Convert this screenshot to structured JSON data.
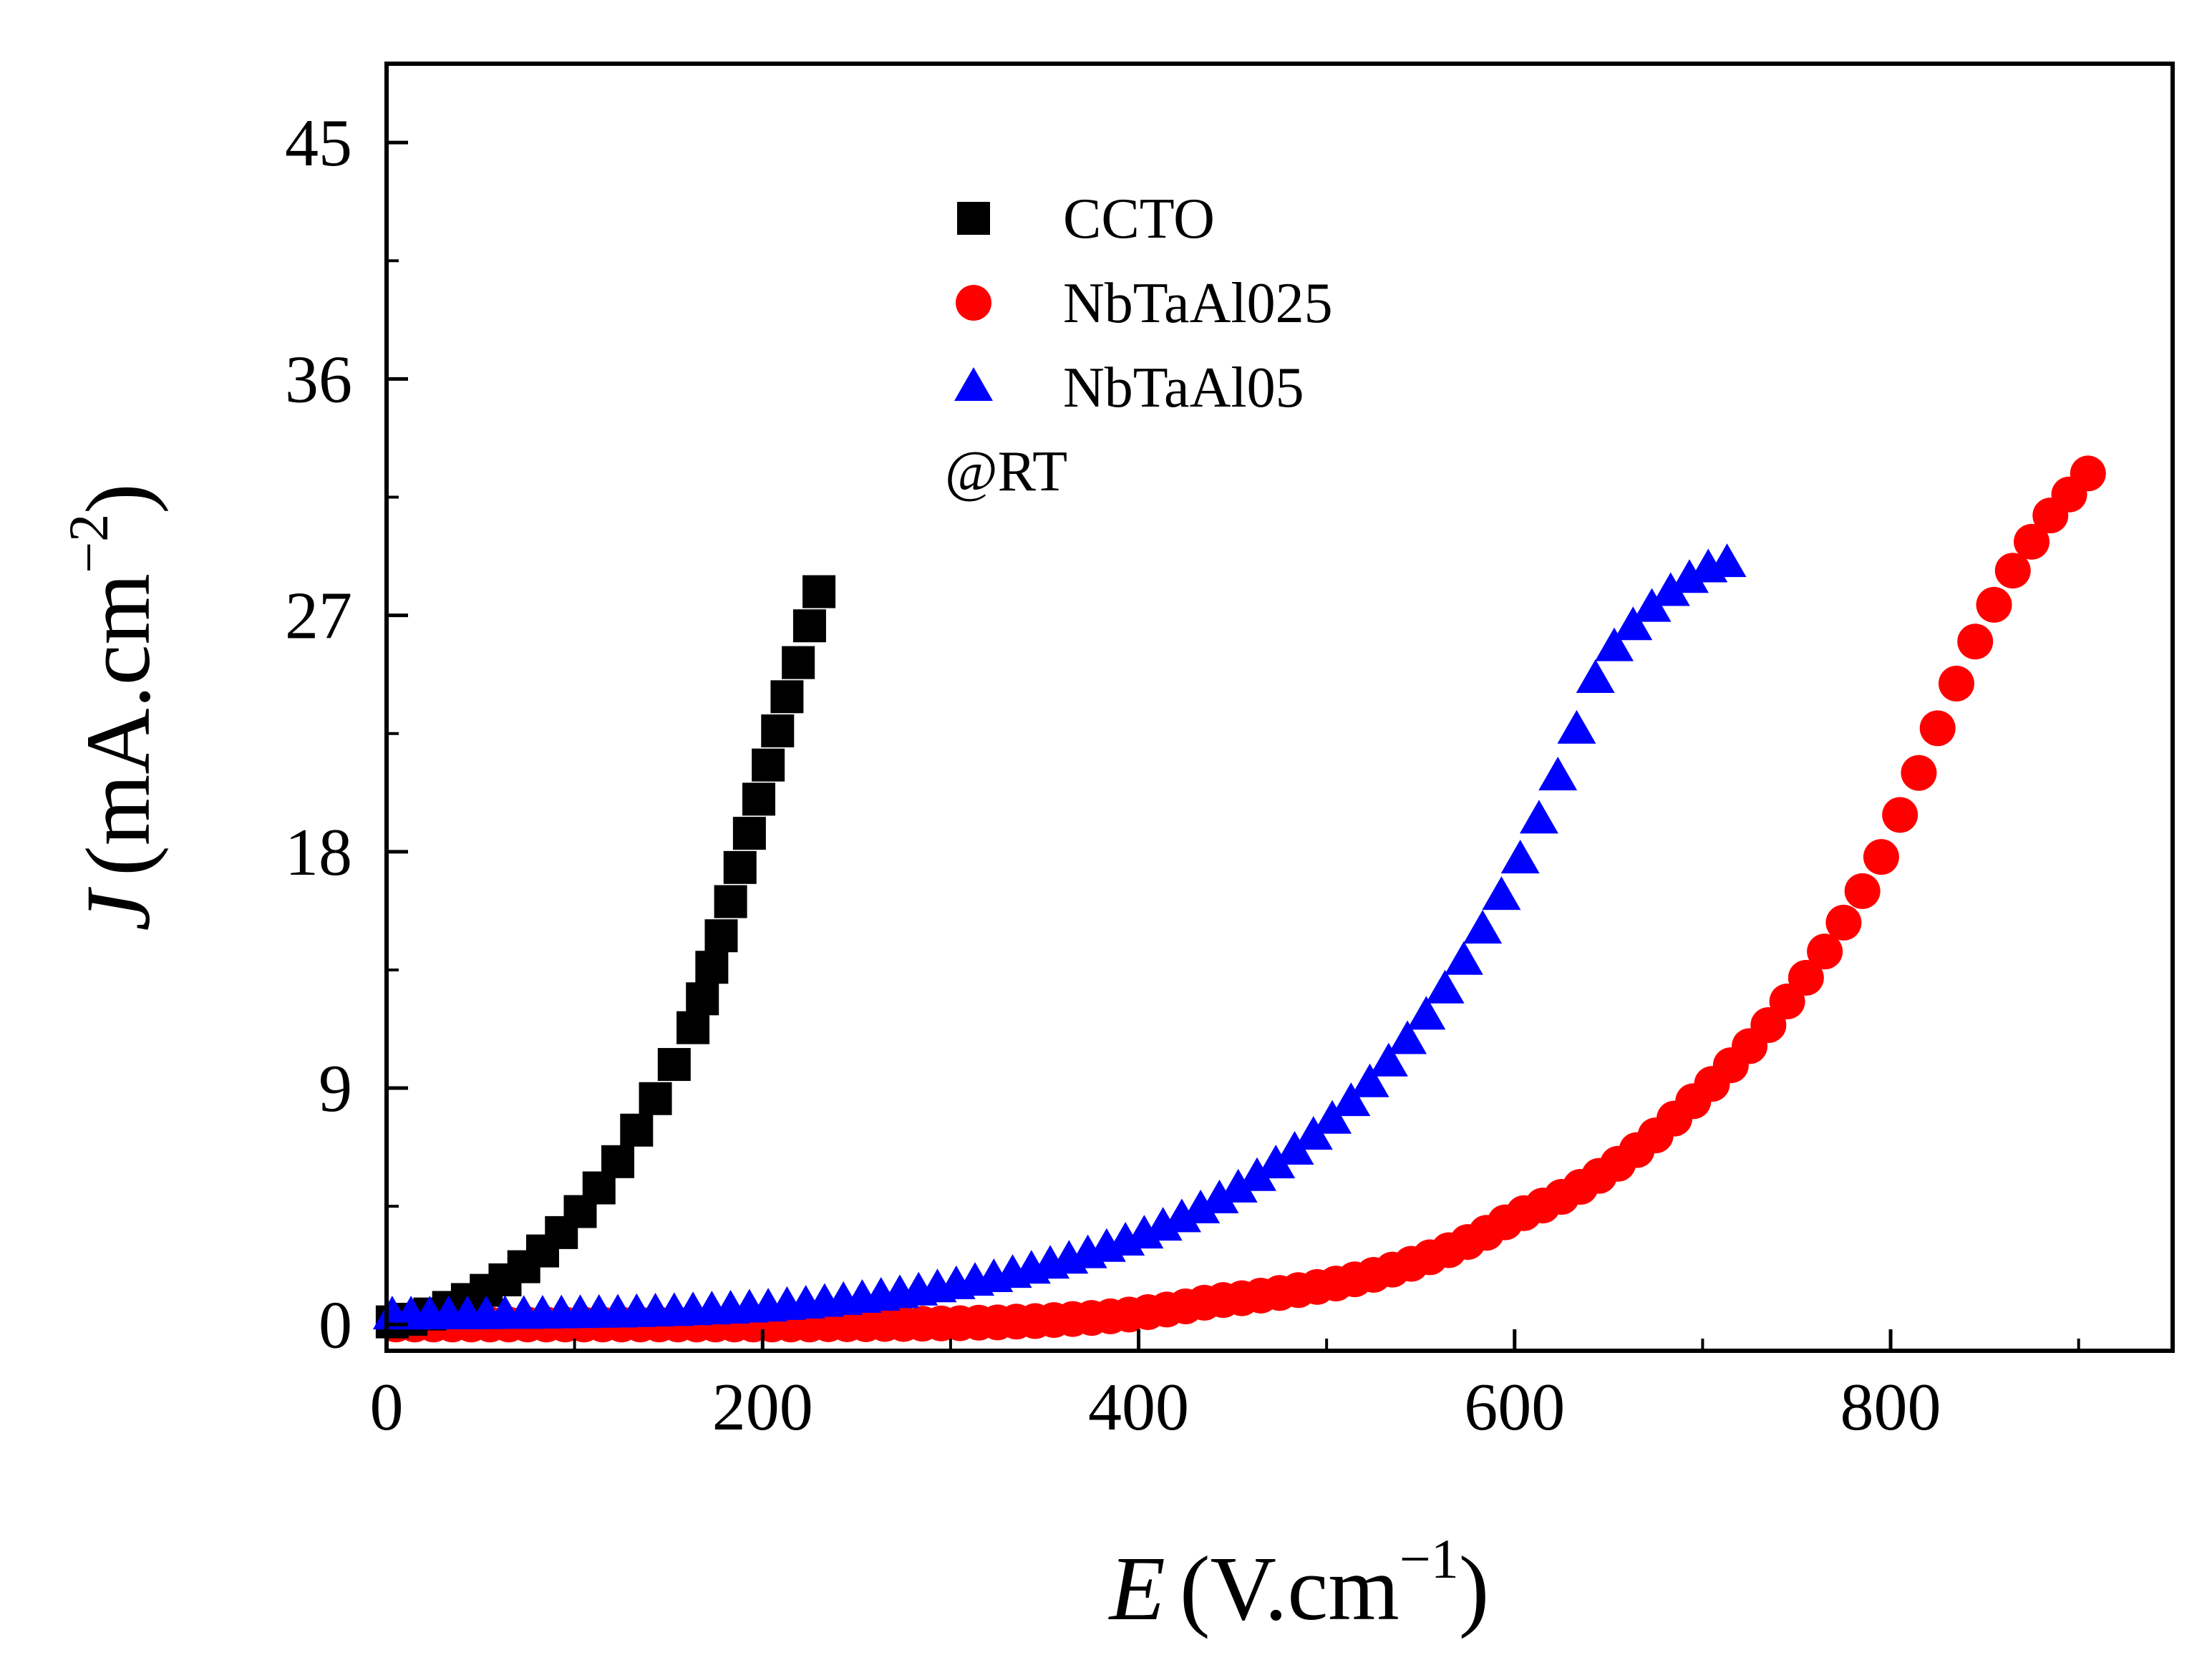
{
  "chart_data": {
    "type": "scatter",
    "title": "",
    "xlabel_var": "E",
    "xlabel_unit_main": "(V.cm",
    "xlabel_unit_sup": "−1",
    "xlabel_unit_close": ")",
    "ylabel_var": "J",
    "ylabel_unit_main": "(mA.cm",
    "ylabel_unit_sup": "−2",
    "ylabel_unit_close": ")",
    "xlim": [
      0,
      950
    ],
    "ylim": [
      -1,
      48
    ],
    "x_ticks": [
      0,
      200,
      400,
      600,
      800
    ],
    "y_ticks": [
      0,
      9,
      18,
      27,
      36,
      45
    ],
    "x_tick_labels": [
      "0",
      "200",
      "400",
      "600",
      "800"
    ],
    "y_tick_labels": [
      "0",
      "9",
      "18",
      "27",
      "36",
      "45"
    ],
    "annotation": "@RT",
    "legend_position": "top-center",
    "series": [
      {
        "name": "CCTO",
        "marker": "square",
        "color": "#000000",
        "x": [
          3,
          13,
          23,
          33,
          43,
          53,
          63,
          73,
          83,
          93,
          103,
          113,
          123,
          133,
          143,
          153,
          163,
          168,
          173,
          178,
          183,
          188,
          193,
          198,
          203,
          208,
          213,
          219,
          225,
          230
        ],
        "y": [
          0.1,
          0.2,
          0.4,
          0.65,
          0.95,
          1.3,
          1.7,
          2.2,
          2.8,
          3.5,
          4.3,
          5.2,
          6.2,
          7.4,
          8.6,
          9.9,
          11.3,
          12.4,
          13.6,
          14.8,
          16.1,
          17.4,
          18.7,
          20.0,
          21.3,
          22.6,
          23.9,
          25.2,
          26.6,
          27.9
        ]
      },
      {
        "name": "NbTaAl025",
        "marker": "circle",
        "color": "#ff0000",
        "x": [
          5,
          15,
          25,
          35,
          45,
          55,
          65,
          75,
          85,
          95,
          105,
          115,
          125,
          135,
          145,
          155,
          165,
          175,
          185,
          195,
          205,
          215,
          225,
          235,
          245,
          255,
          265,
          275,
          285,
          295,
          305,
          315,
          325,
          335,
          345,
          355,
          365,
          375,
          385,
          395,
          405,
          415,
          425,
          435,
          445,
          455,
          465,
          475,
          485,
          495,
          505,
          515,
          525,
          535,
          545,
          555,
          565,
          575,
          585,
          595,
          605,
          615,
          625,
          635,
          645,
          655,
          665,
          675,
          685,
          695,
          705,
          715,
          725,
          735,
          745,
          755,
          765,
          775,
          785,
          795,
          805,
          815,
          825,
          835,
          845,
          855,
          865,
          875,
          885,
          895,
          905
        ],
        "y": [
          0.0,
          0.0,
          0.0,
          0.0,
          0.0,
          0.0,
          0.0,
          0.0,
          0.0,
          0.0,
          0.0,
          0.0,
          0.0,
          0.0,
          0.0,
          0.0,
          0.0,
          0.0,
          0.0,
          0.0,
          0.0,
          0.0,
          0.0,
          0.01,
          0.01,
          0.01,
          0.02,
          0.02,
          0.03,
          0.04,
          0.05,
          0.07,
          0.08,
          0.11,
          0.13,
          0.17,
          0.21,
          0.25,
          0.31,
          0.38,
          0.47,
          0.57,
          0.69,
          0.83,
          0.93,
          1.0,
          1.1,
          1.2,
          1.31,
          1.43,
          1.56,
          1.72,
          1.89,
          2.09,
          2.31,
          2.56,
          2.83,
          3.14,
          3.49,
          3.89,
          4.24,
          4.53,
          4.86,
          5.24,
          5.66,
          6.12,
          6.64,
          7.2,
          7.84,
          8.5,
          9.16,
          9.87,
          10.6,
          11.4,
          12.3,
          13.2,
          14.2,
          15.3,
          16.5,
          17.8,
          19.4,
          21.0,
          22.7,
          24.4,
          26.0,
          27.4,
          28.7,
          29.8,
          30.8,
          31.6,
          32.4
        ]
      },
      {
        "name": "NbTaAl05",
        "marker": "triangle",
        "color": "#0000ff",
        "x": [
          3,
          13,
          23,
          33,
          43,
          53,
          63,
          73,
          83,
          93,
          103,
          113,
          123,
          133,
          143,
          153,
          163,
          173,
          183,
          193,
          203,
          213,
          223,
          233,
          243,
          253,
          263,
          273,
          283,
          293,
          303,
          313,
          323,
          333,
          343,
          353,
          363,
          373,
          383,
          393,
          403,
          413,
          423,
          433,
          443,
          453,
          463,
          473,
          483,
          493,
          503,
          513,
          523,
          533,
          543,
          553,
          563,
          573,
          583,
          593,
          603,
          613,
          623,
          633,
          643,
          653,
          663,
          673,
          683,
          693,
          703,
          713
        ],
        "y": [
          0.36,
          0.36,
          0.36,
          0.37,
          0.37,
          0.37,
          0.38,
          0.38,
          0.39,
          0.4,
          0.41,
          0.42,
          0.43,
          0.45,
          0.47,
          0.49,
          0.52,
          0.55,
          0.58,
          0.62,
          0.66,
          0.72,
          0.77,
          0.84,
          0.91,
          0.99,
          1.07,
          1.17,
          1.27,
          1.39,
          1.51,
          1.64,
          1.78,
          1.94,
          2.1,
          2.29,
          2.48,
          2.69,
          2.93,
          3.17,
          3.44,
          3.74,
          4.06,
          4.4,
          4.78,
          5.19,
          5.63,
          6.11,
          6.63,
          7.2,
          7.81,
          8.48,
          9.2,
          9.99,
          10.84,
          11.77,
          12.77,
          13.86,
          15.05,
          16.33,
          17.72,
          19.24,
          20.88,
          22.66,
          24.59,
          25.8,
          26.6,
          27.3,
          27.9,
          28.4,
          28.8,
          29.0
        ]
      }
    ]
  }
}
